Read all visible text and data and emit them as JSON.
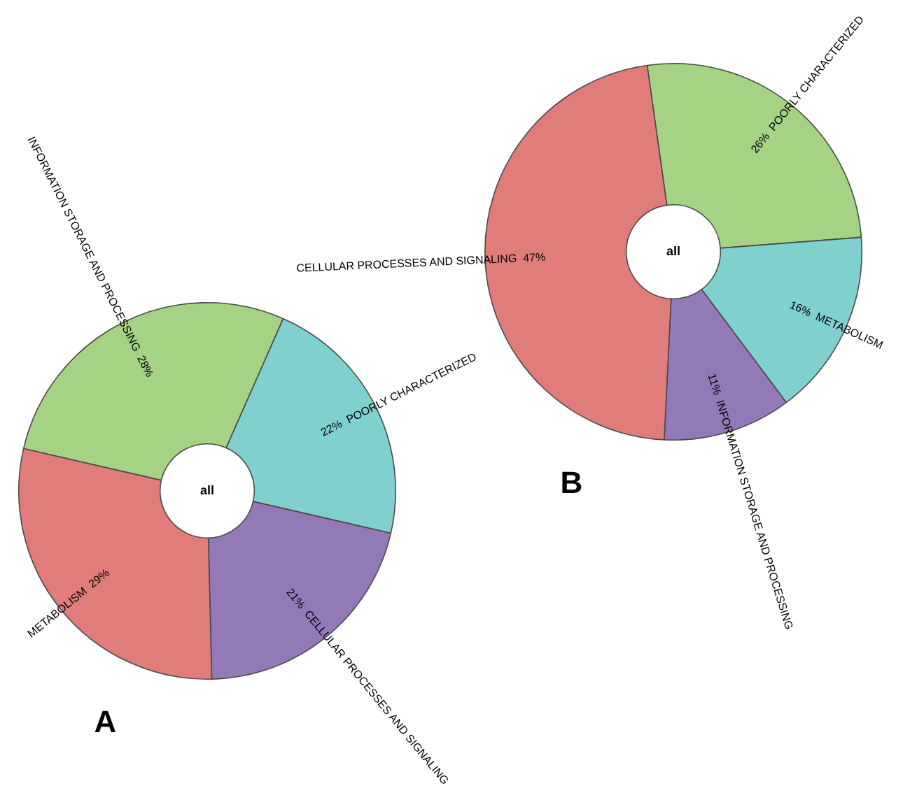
{
  "chart_data": [
    {
      "type": "donut",
      "title": "A",
      "annotations": [
        "all"
      ],
      "legend": false,
      "categories": [
        "INFORMATION STORAGE AND PROCESSING",
        "POORLY CHARACTERIZED",
        "CELLULAR PROCESSES AND SIGNALING",
        "METABOLISM"
      ],
      "values": [
        28,
        22,
        21,
        29
      ],
      "value_labels": [
        "28%",
        "22%",
        "21%",
        "29%"
      ],
      "colors": [
        "#a6d283",
        "#80d0cd",
        "#9479b9",
        "#e07c7a"
      ]
    },
    {
      "type": "donut",
      "title": "B",
      "annotations": [
        "all"
      ],
      "legend": false,
      "categories": [
        "POORLY CHARACTERIZED",
        "METABOLISM",
        "INFORMATION STORAGE AND PROCESSING",
        "CELLULAR PROCESSES AND SIGNALING"
      ],
      "values": [
        26,
        16,
        11,
        47
      ],
      "value_labels": [
        "26%",
        "16%",
        "11%",
        "47%"
      ],
      "colors": [
        "#a6d283",
        "#80d0cd",
        "#9479b9",
        "#e07c7a"
      ]
    }
  ]
}
